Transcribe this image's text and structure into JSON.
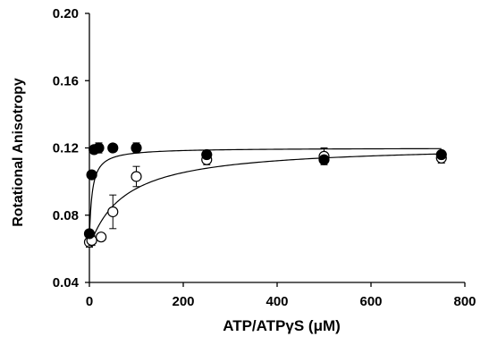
{
  "chart_data": {
    "type": "scatter",
    "title": "",
    "xlabel": "ATP/ATPγS (μM)",
    "ylabel": "Rotational Anisotropy",
    "xlim": [
      0,
      800
    ],
    "ylim": [
      0.04,
      0.2
    ],
    "xticks": [
      "0",
      "200",
      "400",
      "600",
      "800"
    ],
    "yticks": [
      "0.04",
      "0.08",
      "0.12",
      "0.16",
      "0.20"
    ],
    "grid": false,
    "legend": "none",
    "series": [
      {
        "marker": "filled-circle",
        "color": "#000000",
        "x": [
          0,
          5,
          10,
          20,
          50,
          100,
          250,
          500,
          750
        ],
        "y": [
          0.069,
          0.104,
          0.119,
          0.12,
          0.12,
          0.12,
          0.116,
          0.113,
          0.116
        ],
        "err": [
          0.002,
          0.002,
          0.002,
          0.003,
          0.002,
          0.003,
          0.002,
          0.002,
          0.002
        ],
        "fit": {
          "ymin": 0.066,
          "ymax": 0.12,
          "k": 6
        }
      },
      {
        "marker": "open-circle",
        "color": "#000000",
        "x": [
          0,
          5,
          25,
          50,
          100,
          250,
          500,
          750
        ],
        "y": [
          0.064,
          0.065,
          0.067,
          0.082,
          0.103,
          0.113,
          0.115,
          0.114
        ],
        "err": [
          0.003,
          0.003,
          0.002,
          0.01,
          0.006,
          0.003,
          0.005,
          0.003
        ],
        "fit": {
          "ymin": 0.061,
          "ymax": 0.122,
          "k": 75
        }
      }
    ]
  }
}
